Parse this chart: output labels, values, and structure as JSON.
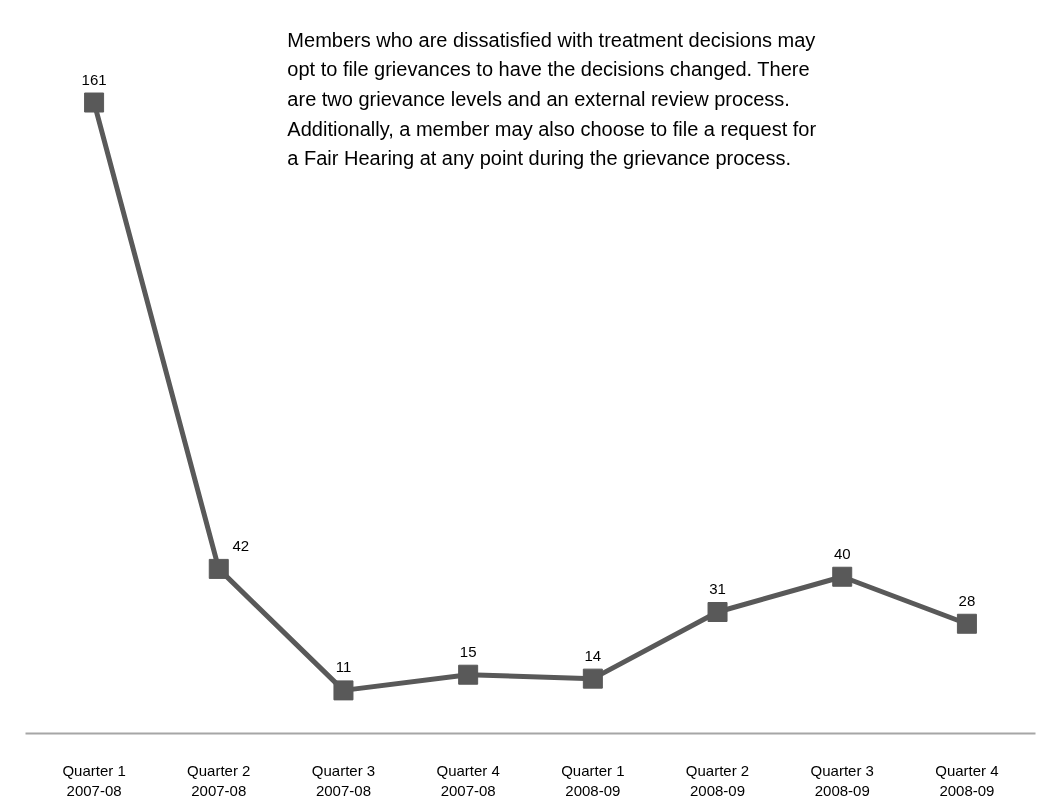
{
  "chart_data": {
    "type": "line",
    "categories": [
      "Quarter 1\n2007-08",
      "Quarter 2\n2007-08",
      "Quarter 3\n2007-08",
      "Quarter 4\n2007-08",
      "Quarter 1\n2008-09",
      "Quarter 2\n2008-09",
      "Quarter 3\n2008-09",
      "Quarter 4\n2008-09"
    ],
    "series": [
      {
        "color": "#595959",
        "values": [
          161,
          42,
          11,
          15,
          14,
          31,
          40,
          28
        ]
      }
    ],
    "data_labels": true,
    "marker": "square",
    "line_style": "solid",
    "grid": false,
    "annotations": [
      "Members who are dissatisfied with treatment decisions may\nopt to file grievances to have the decisions changed.  There\nare two grievance levels and an external review process.\nAdditionally, a member may also choose to file a request for\na Fair Hearing at any point during the grievance process."
    ]
  }
}
